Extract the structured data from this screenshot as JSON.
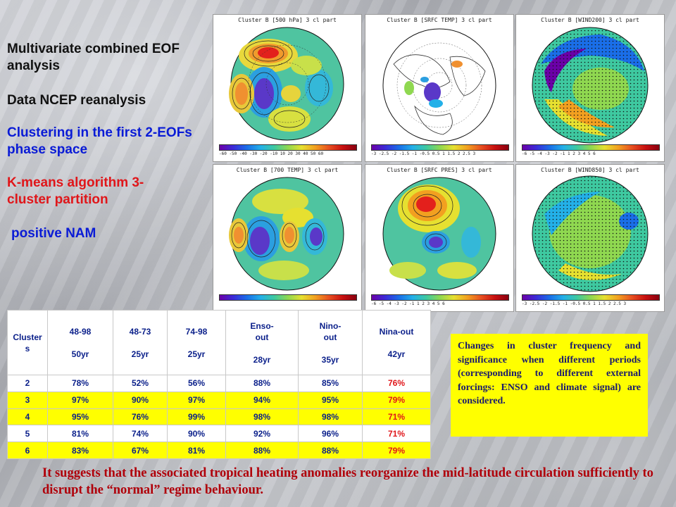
{
  "headings": [
    {
      "text": "Multivariate combined EOF analysis",
      "color": "black"
    },
    {
      "text": "Data NCEP reanalysis",
      "color": "black"
    },
    {
      "text": "Clustering in the first 2-EOFs phase space",
      "color": "blue"
    },
    {
      "text": "K-means algorithm 3-cluster partition",
      "color": "red"
    },
    {
      "text": "positive NAM",
      "color": "blue"
    }
  ],
  "panels": [
    {
      "title": "Cluster B  [500 hPa] 3 cl part",
      "ticks": "-60 -50 -40 -30 -20 -10 10 20 30 40 50 60",
      "kind": "contour"
    },
    {
      "title": "Cluster B  [SRFC TEMP] 3 cl part",
      "ticks": "-3 -2.5 -2 -1.5 -1 -0.5 0.5 1 1.5 2 2.5 3",
      "kind": "sparse"
    },
    {
      "title": "Cluster B  [WIND200] 3 cl part",
      "ticks": "-6 -5 -4 -3 -2 -1 1 2 3 4 5 6",
      "kind": "wind"
    },
    {
      "title": "Cluster B  [700 TEMP] 3 cl part",
      "ticks": "",
      "kind": "contour2"
    },
    {
      "title": "Cluster B  [SRFC PRES] 3 cl part",
      "ticks": "-6 -5 -4 -3 -2 -1 1 2 3 4 5 6",
      "kind": "pres"
    },
    {
      "title": "Cluster B  [WIND850] 3 cl part",
      "ticks": "-3 -2.5 -2 -1.5 -1 -0.5 0.5 1 1.5 2 2.5 3",
      "kind": "wind"
    }
  ],
  "table": {
    "header": [
      [
        "Cluster",
        "s"
      ],
      [
        "48-98",
        "50yr"
      ],
      [
        "48-73",
        "25yr"
      ],
      [
        "74-98",
        "25yr"
      ],
      [
        "Enso-",
        "out",
        "28yr"
      ],
      [
        "Nino-",
        "out",
        "35yr"
      ],
      [
        "Nina-out",
        "42yr"
      ]
    ],
    "rows": [
      {
        "cells": [
          "2",
          "78%",
          "52%",
          "56%",
          "88%",
          "85%",
          "76%"
        ],
        "highlight": false
      },
      {
        "cells": [
          "3",
          "97%",
          "90%",
          "97%",
          "94%",
          "95%",
          "79%"
        ],
        "highlight": true
      },
      {
        "cells": [
          "4",
          "95%",
          "76%",
          "99%",
          "98%",
          "98%",
          "71%"
        ],
        "highlight": true
      },
      {
        "cells": [
          "5",
          "81%",
          "74%",
          "90%",
          "92%",
          "96%",
          "71%"
        ],
        "highlight": false
      },
      {
        "cells": [
          "6",
          "83%",
          "67%",
          "81%",
          "88%",
          "88%",
          "79%"
        ],
        "highlight": true
      }
    ]
  },
  "note": "Changes in cluster frequency and significance when different periods (corresponding to different external forcings: ENSO and climate signal) are considered.",
  "conclusion": "It suggests that the associated tropical heating anomalies reorganize the mid-latitude circulation sufficiently to disrupt the “normal” regime behaviour."
}
